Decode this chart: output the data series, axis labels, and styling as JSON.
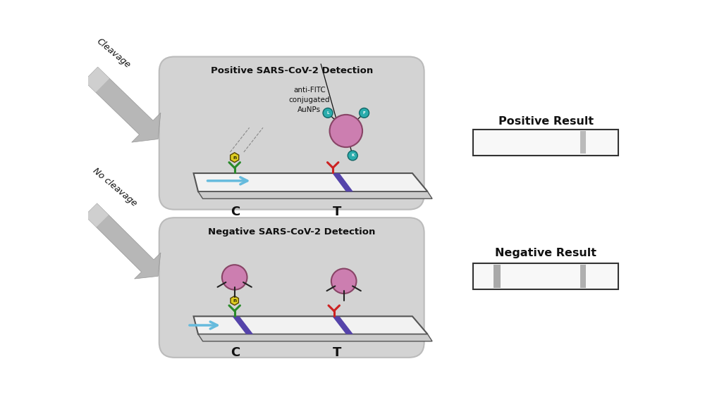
{
  "bg_color": "#ffffff",
  "panel_bg": "#d3d3d3",
  "positive_title": "Positive SARS-CoV-2 Detection",
  "negative_title": "Negative SARS-CoV-2 Detection",
  "positive_result_label": "Positive Result",
  "negative_result_label": "Negative Result",
  "cleavage_label": "Cleavage",
  "no_cleavage_label": "No cleavage",
  "aunps_label": "anti-FITC\nconjugated\nAuNPs",
  "c_label": "C",
  "t_label": "T",
  "purple_color": "#cc7eb0",
  "green_dark": "#2a8a2a",
  "red_color": "#cc2222",
  "teal_color": "#2aacac",
  "yellow_color": "#ddcc22",
  "dark_color": "#111111",
  "strip_purple": "#5544aa",
  "dashed_color": "#888888",
  "blue_arrow": "#66bbdd",
  "strip_white": "#f5f5f5",
  "panel_border": "#bbbbbb"
}
